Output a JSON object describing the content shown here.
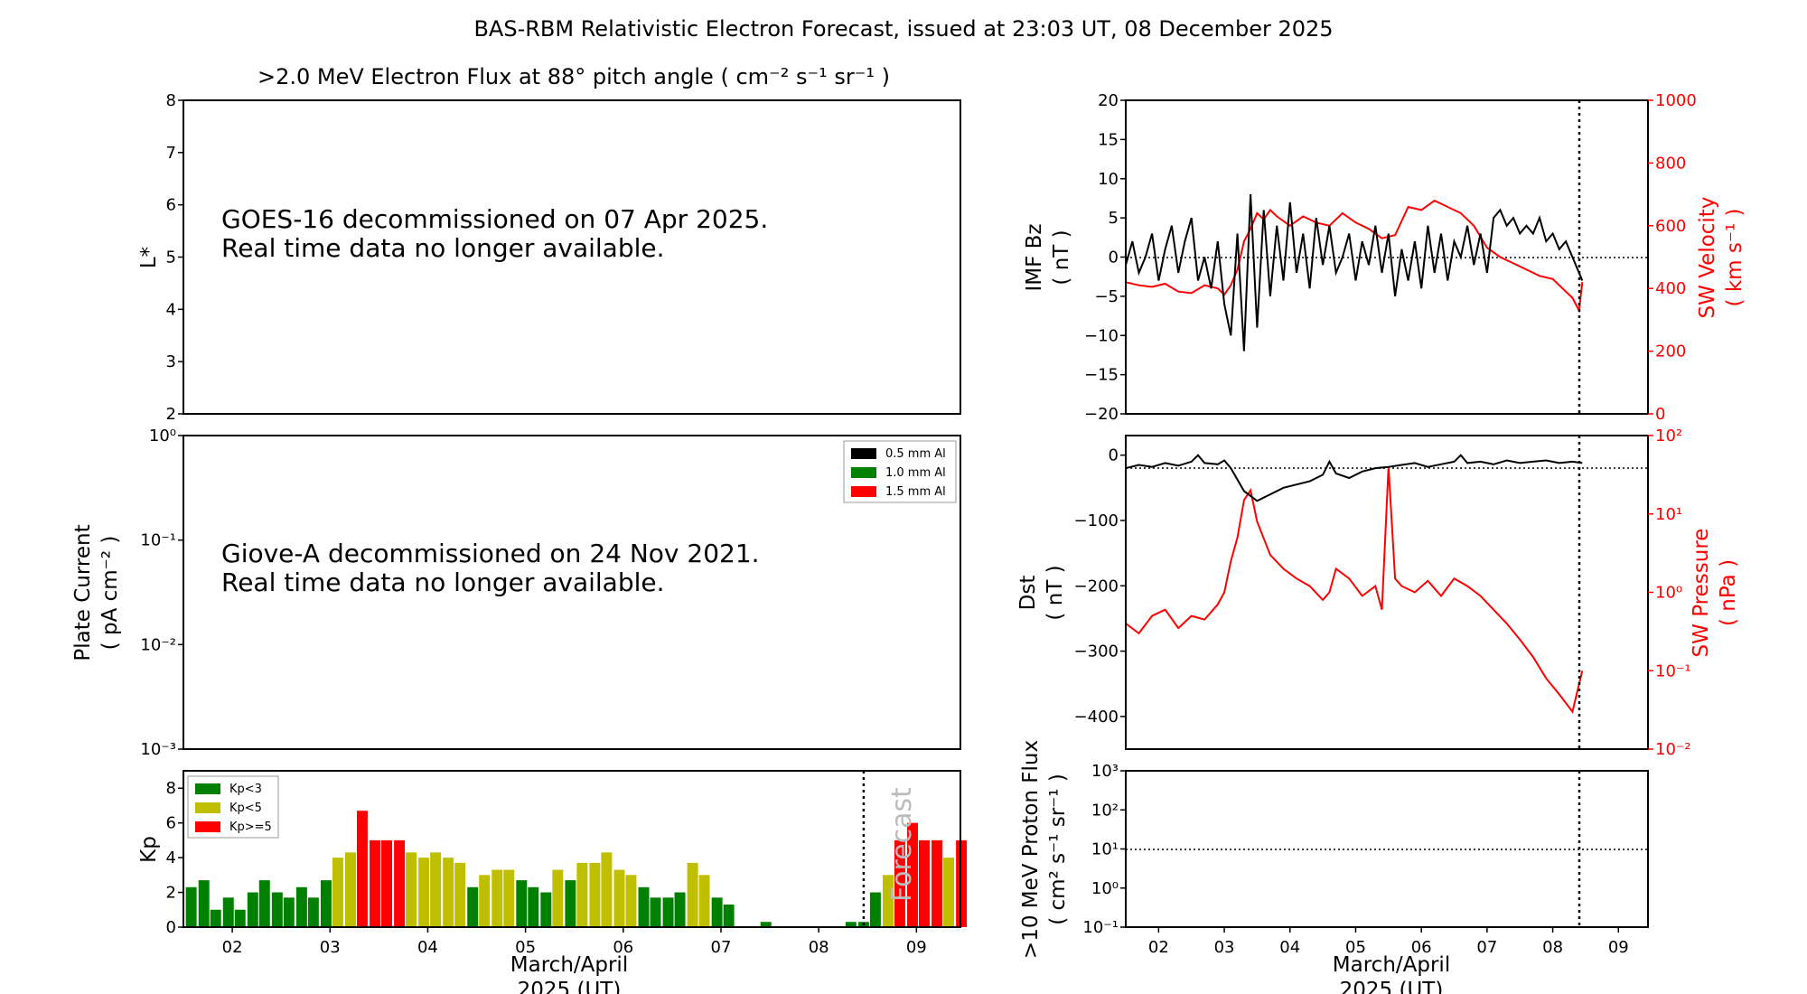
{
  "title": "BAS-RBM Relativistic Electron Forecast, issued at 23:03 UT, 08 December 2025",
  "colors": {
    "kp_low": "#008000",
    "kp_mid": "#bfbf00",
    "kp_high": "#ff0000",
    "red": "#ff0000",
    "black": "#000000"
  },
  "panels": {
    "flux": {
      "title": ">2.0 MeV Electron Flux at 88° pitch angle ( cm⁻² s⁻¹ sr⁻¹ )",
      "ylabel": "L*",
      "yticks": [
        "2",
        "3",
        "4",
        "5",
        "6",
        "7",
        "8"
      ],
      "message_line1": "GOES-16 decommissioned on 07 Apr 2025.",
      "message_line2": "Real time data no longer available."
    },
    "plate": {
      "ylabel_line1": "Plate Current",
      "ylabel_line2": "( pA cm⁻² )",
      "yticks": [
        "10⁰",
        "10⁻¹",
        "10⁻²",
        "10⁻³"
      ],
      "legend": [
        "0.5 mm Al",
        "1.0 mm Al",
        "1.5 mm Al"
      ],
      "message_line1": "Giove-A decommissioned on 24 Nov 2021.",
      "message_line2": "Real time data no longer available."
    },
    "kp": {
      "ylabel": "Kp",
      "yticks": [
        "0",
        "2",
        "4",
        "6",
        "8"
      ],
      "legend": [
        "Kp<3",
        "Kp<5",
        "Kp>=5"
      ],
      "forecast_label": "Forecast",
      "xticks": [
        "02",
        "03",
        "04",
        "05",
        "06",
        "07",
        "08",
        "09"
      ],
      "xlabel_line1": "March/April",
      "xlabel_line2": "2025 (UT)"
    },
    "imf": {
      "ylabel_line1": "IMF Bz",
      "ylabel_line2": "( nT )",
      "yticks": [
        "20",
        "15",
        "10",
        "5",
        "0",
        "−5",
        "−10",
        "−15",
        "−20"
      ],
      "y2label_line1": "SW Velocity",
      "y2label_line2": "( km s⁻¹ )",
      "y2ticks": [
        "1000",
        "800",
        "600",
        "400",
        "200",
        "0"
      ]
    },
    "dst": {
      "ylabel_line1": "Dst",
      "ylabel_line2": "( nT )",
      "yticks": [
        "0",
        "−100",
        "−200",
        "−300",
        "−400"
      ],
      "y2label_line1": "SW Pressure",
      "y2label_line2": "( nPa )",
      "y2ticks": [
        "10²",
        "10¹",
        "10⁰",
        "10⁻¹",
        "10⁻²"
      ]
    },
    "proton": {
      "ylabel_line1": ">10 MeV Proton Flux",
      "ylabel_line2": "( cm² s⁻¹ sr⁻¹ )",
      "yticks": [
        "10³",
        "10²",
        "10¹",
        "10⁰",
        "10⁻¹"
      ],
      "xticks": [
        "02",
        "03",
        "04",
        "05",
        "06",
        "07",
        "08",
        "09"
      ],
      "xlabel_line1": "March/April",
      "xlabel_line2": "2025 (UT)"
    }
  },
  "chart_data": [
    {
      "type": "bar",
      "id": "kp",
      "x": [
        1.58,
        1.71,
        1.83,
        1.96,
        2.08,
        2.21,
        2.33,
        2.46,
        2.58,
        2.71,
        2.83,
        2.96,
        3.08,
        3.21,
        3.33,
        3.46,
        3.58,
        3.71,
        3.83,
        3.96,
        4.08,
        4.21,
        4.33,
        4.46,
        4.58,
        4.71,
        4.83,
        4.96,
        5.08,
        5.21,
        5.33,
        5.46,
        5.58,
        5.71,
        5.83,
        5.96,
        6.08,
        6.21,
        6.33,
        6.46,
        6.58,
        6.71,
        6.83,
        6.96,
        7.08,
        7.21,
        7.33,
        7.46,
        7.58,
        7.71,
        7.83,
        7.96,
        8.08,
        8.21,
        8.33,
        8.46,
        8.58,
        8.71,
        8.83,
        8.96,
        9.08,
        9.21,
        9.33,
        9.46
      ],
      "values": [
        2.3,
        2.7,
        1.0,
        1.7,
        1.0,
        2.0,
        2.7,
        2.0,
        1.7,
        2.3,
        1.7,
        2.7,
        4.0,
        4.3,
        6.7,
        5.0,
        5.0,
        5.0,
        4.3,
        4.0,
        4.3,
        4.0,
        3.7,
        2.3,
        3.0,
        3.3,
        3.3,
        2.7,
        2.3,
        2.0,
        3.3,
        2.7,
        3.7,
        3.7,
        4.3,
        3.3,
        3.0,
        2.3,
        1.7,
        1.7,
        2.0,
        3.7,
        3.0,
        1.7,
        1.3,
        0,
        0,
        0.3,
        0,
        0,
        0,
        0,
        0,
        0,
        0.3,
        0.3,
        2.0,
        3.0,
        5.0,
        6.0,
        5.0,
        5.0,
        4.0,
        5.0
      ],
      "xlim": [
        1.5,
        9.45
      ],
      "ylim": [
        0,
        9
      ],
      "forecast_start": 8.46,
      "ylabel": "Kp"
    },
    {
      "type": "line",
      "id": "imf_bz",
      "x": [
        1.5,
        1.6,
        1.7,
        1.8,
        1.9,
        2.0,
        2.1,
        2.2,
        2.3,
        2.4,
        2.5,
        2.6,
        2.7,
        2.8,
        2.9,
        3.0,
        3.1,
        3.2,
        3.3,
        3.4,
        3.5,
        3.6,
        3.7,
        3.8,
        3.9,
        4.0,
        4.1,
        4.2,
        4.3,
        4.4,
        4.5,
        4.6,
        4.7,
        4.8,
        4.9,
        5.0,
        5.1,
        5.2,
        5.3,
        5.4,
        5.5,
        5.6,
        5.7,
        5.8,
        5.9,
        6.0,
        6.1,
        6.2,
        6.3,
        6.4,
        6.5,
        6.6,
        6.7,
        6.8,
        6.9,
        7.0,
        7.1,
        7.2,
        7.3,
        7.4,
        7.5,
        7.6,
        7.7,
        7.8,
        7.9,
        8.0,
        8.1,
        8.2,
        8.3,
        8.4,
        8.45
      ],
      "y": [
        -1,
        2,
        -2,
        0,
        3,
        -3,
        1,
        4,
        -2,
        2,
        5,
        -3,
        0,
        -4,
        2,
        -6,
        -10,
        3,
        -12,
        8,
        -9,
        6,
        -5,
        4,
        -3,
        7,
        -2,
        3,
        -4,
        5,
        -1,
        4,
        -2,
        0,
        3,
        -3,
        2,
        -1,
        4,
        -2,
        3,
        -5,
        1,
        -3,
        2,
        -4,
        4,
        -2,
        3,
        -3,
        2,
        0,
        4,
        -1,
        3,
        -2,
        5,
        6,
        4,
        5,
        3,
        4,
        3,
        5,
        2,
        3,
        1,
        2,
        0,
        -2,
        -3
      ],
      "xlim": [
        1.5,
        9.45
      ],
      "ylim": [
        -20,
        20
      ]
    },
    {
      "type": "line",
      "id": "sw_velocity",
      "x": [
        1.5,
        1.7,
        1.9,
        2.1,
        2.3,
        2.5,
        2.7,
        2.9,
        3.0,
        3.1,
        3.2,
        3.3,
        3.4,
        3.5,
        3.6,
        3.7,
        3.8,
        4.0,
        4.2,
        4.4,
        4.6,
        4.8,
        5.0,
        5.2,
        5.4,
        5.6,
        5.8,
        6.0,
        6.2,
        6.4,
        6.6,
        6.8,
        7.0,
        7.2,
        7.4,
        7.6,
        7.8,
        8.0,
        8.2,
        8.3,
        8.4,
        8.45
      ],
      "y": [
        420,
        410,
        405,
        415,
        390,
        385,
        410,
        400,
        380,
        410,
        460,
        550,
        590,
        640,
        620,
        650,
        630,
        600,
        630,
        610,
        600,
        640,
        610,
        590,
        560,
        570,
        660,
        650,
        680,
        660,
        640,
        600,
        530,
        500,
        480,
        460,
        440,
        430,
        390,
        370,
        330,
        420
      ],
      "xlim": [
        1.5,
        9.45
      ],
      "ylim": [
        0,
        1000
      ]
    },
    {
      "type": "line",
      "id": "dst",
      "x": [
        1.5,
        1.7,
        1.9,
        2.1,
        2.3,
        2.5,
        2.6,
        2.7,
        2.9,
        3.0,
        3.1,
        3.3,
        3.5,
        3.7,
        3.9,
        4.1,
        4.3,
        4.5,
        4.6,
        4.7,
        4.9,
        5.1,
        5.3,
        5.5,
        5.7,
        5.9,
        6.1,
        6.3,
        6.5,
        6.6,
        6.7,
        6.9,
        7.1,
        7.3,
        7.5,
        7.7,
        7.9,
        8.1,
        8.3,
        8.45
      ],
      "y": [
        -20,
        -15,
        -18,
        -12,
        -16,
        -10,
        0,
        -12,
        -14,
        -8,
        -20,
        -55,
        -70,
        -60,
        -50,
        -45,
        -40,
        -30,
        -10,
        -28,
        -35,
        -25,
        -20,
        -18,
        -15,
        -12,
        -18,
        -14,
        -10,
        0,
        -12,
        -10,
        -14,
        -8,
        -12,
        -10,
        -8,
        -12,
        -10,
        -12
      ],
      "xlim": [
        1.5,
        9.45
      ],
      "ylim": [
        -450,
        30
      ]
    },
    {
      "type": "line",
      "id": "sw_pressure",
      "x": [
        1.5,
        1.7,
        1.9,
        2.1,
        2.3,
        2.5,
        2.7,
        2.9,
        3.0,
        3.1,
        3.2,
        3.3,
        3.4,
        3.5,
        3.7,
        3.9,
        4.1,
        4.3,
        4.5,
        4.6,
        4.7,
        4.9,
        5.1,
        5.3,
        5.4,
        5.5,
        5.6,
        5.7,
        5.9,
        6.1,
        6.3,
        6.5,
        6.7,
        6.9,
        7.1,
        7.3,
        7.5,
        7.7,
        7.9,
        8.1,
        8.3,
        8.45
      ],
      "y": [
        0.4,
        0.3,
        0.5,
        0.6,
        0.35,
        0.5,
        0.45,
        0.7,
        1.0,
        2.5,
        5,
        15,
        20,
        8,
        3,
        2,
        1.5,
        1.2,
        0.8,
        1.0,
        2.0,
        1.5,
        0.9,
        1.2,
        0.6,
        40,
        1.5,
        1.2,
        1.0,
        1.4,
        0.9,
        1.5,
        1.2,
        0.9,
        0.6,
        0.4,
        0.25,
        0.15,
        0.08,
        0.05,
        0.03,
        0.1
      ],
      "xlim": [
        1.5,
        9.45
      ],
      "ylim": [
        0.01,
        100
      ],
      "yscale": "log"
    },
    {
      "type": "line",
      "id": "proton_flux",
      "x": [],
      "y": [],
      "threshold": 10,
      "xlim": [
        1.5,
        9.45
      ],
      "ylim": [
        0.1,
        1000
      ],
      "yscale": "log"
    }
  ]
}
